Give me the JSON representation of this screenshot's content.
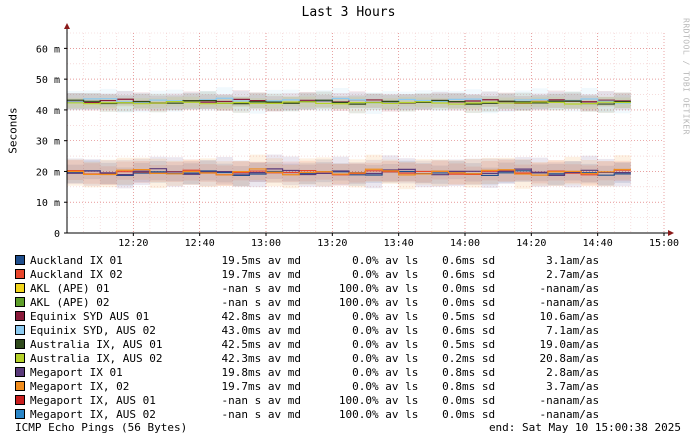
{
  "chart_data": {
    "type": "line",
    "title": "Last 3 Hours",
    "ylabel": "Seconds",
    "ylim": [
      0,
      0.065
    ],
    "xlim": [
      "12:00",
      "15:00"
    ],
    "y_ticks": [
      {
        "value": 0,
        "label": "0"
      },
      {
        "value": 0.01,
        "label": "10 m"
      },
      {
        "value": 0.02,
        "label": "20 m"
      },
      {
        "value": 0.03,
        "label": "30 m"
      },
      {
        "value": 0.04,
        "label": "40 m"
      },
      {
        "value": 0.05,
        "label": "50 m"
      },
      {
        "value": 0.06,
        "label": "60 m"
      }
    ],
    "x_ticks": [
      "12:20",
      "12:40",
      "13:00",
      "13:20",
      "13:40",
      "14:00",
      "14:20",
      "14:40",
      "15:00"
    ],
    "grid": true,
    "series": [
      {
        "name": "Auckland IX 01",
        "color": "#1f4e8c",
        "median": 0.0195,
        "sd": 0.0006
      },
      {
        "name": "Auckland IX 02",
        "color": "#e8462c",
        "median": 0.0197,
        "sd": 0.0006
      },
      {
        "name": "AKL (APE) 01",
        "color": "#f2d51c",
        "median": null,
        "sd": 0
      },
      {
        "name": "AKL (APE) 02",
        "color": "#5e9e2a",
        "median": null,
        "sd": 0
      },
      {
        "name": "Equinix SYD AUS 01",
        "color": "#8a1a3a",
        "median": 0.0428,
        "sd": 0.0005
      },
      {
        "name": "Equinix SYD, AUS 02",
        "color": "#8ccaf0",
        "median": 0.043,
        "sd": 0.0006
      },
      {
        "name": "Australia IX, AUS 01",
        "color": "#2f4a1c",
        "median": 0.0425,
        "sd": 0.0005
      },
      {
        "name": "Australia IX, AUS 02",
        "color": "#b5d12a",
        "median": 0.0423,
        "sd": 0.0002
      },
      {
        "name": "Megaport IX 01",
        "color": "#5a3a7a",
        "median": 0.0198,
        "sd": 0.0008
      },
      {
        "name": "Megaport IX, 02",
        "color": "#f08c1c",
        "median": 0.0197,
        "sd": 0.0008
      },
      {
        "name": "Megaport IX, AUS 01",
        "color": "#c81e1e",
        "median": null,
        "sd": 0
      },
      {
        "name": "Megaport IX, AUS 02",
        "color": "#2a86c8",
        "median": null,
        "sd": 0
      }
    ]
  },
  "legend": [
    {
      "name": "Auckland IX 01",
      "color": "#1f4e8c",
      "avg": "19.5",
      "avg_unit": "ms av md",
      "loss": "0.0",
      "loss_unit": "% av ls",
      "sd": "0.6",
      "sd_unit": "ms sd",
      "amas": "3.1",
      "amas_unit": "am/as"
    },
    {
      "name": "Auckland IX 02",
      "color": "#e8462c",
      "avg": "19.7",
      "avg_unit": "ms av md",
      "loss": "0.0",
      "loss_unit": "% av ls",
      "sd": "0.6",
      "sd_unit": "ms sd",
      "amas": "2.7",
      "amas_unit": "am/as"
    },
    {
      "name": "AKL (APE) 01",
      "color": "#f2d51c",
      "avg": "-nan",
      "avg_unit": " s av md",
      "loss": "100.0",
      "loss_unit": "% av ls",
      "sd": "0.0",
      "sd_unit": "ms sd",
      "amas": "-nan",
      "amas_unit": "am/as"
    },
    {
      "name": "AKL (APE) 02",
      "color": "#5e9e2a",
      "avg": "-nan",
      "avg_unit": " s av md",
      "loss": "100.0",
      "loss_unit": "% av ls",
      "sd": "0.0",
      "sd_unit": "ms sd",
      "amas": "-nan",
      "amas_unit": "am/as"
    },
    {
      "name": "Equinix SYD AUS 01",
      "color": "#8a1a3a",
      "avg": "42.8",
      "avg_unit": "ms av md",
      "loss": "0.0",
      "loss_unit": "% av ls",
      "sd": "0.5",
      "sd_unit": "ms sd",
      "amas": "10.6",
      "amas_unit": "am/as"
    },
    {
      "name": "Equinix SYD, AUS 02",
      "color": "#8ccaf0",
      "avg": "43.0",
      "avg_unit": "ms av md",
      "loss": "0.0",
      "loss_unit": "% av ls",
      "sd": "0.6",
      "sd_unit": "ms sd",
      "amas": "7.1",
      "amas_unit": "am/as"
    },
    {
      "name": "Australia IX, AUS 01",
      "color": "#2f4a1c",
      "avg": "42.5",
      "avg_unit": "ms av md",
      "loss": "0.0",
      "loss_unit": "% av ls",
      "sd": "0.5",
      "sd_unit": "ms sd",
      "amas": "19.0",
      "amas_unit": "am/as"
    },
    {
      "name": "Australia IX, AUS 02",
      "color": "#b5d12a",
      "avg": "42.3",
      "avg_unit": "ms av md",
      "loss": "0.0",
      "loss_unit": "% av ls",
      "sd": "0.2",
      "sd_unit": "ms sd",
      "amas": "20.8",
      "amas_unit": "am/as"
    },
    {
      "name": "Megaport IX 01",
      "color": "#5a3a7a",
      "avg": "19.8",
      "avg_unit": "ms av md",
      "loss": "0.0",
      "loss_unit": "% av ls",
      "sd": "0.8",
      "sd_unit": "ms sd",
      "amas": "2.8",
      "amas_unit": "am/as"
    },
    {
      "name": "Megaport IX, 02",
      "color": "#f08c1c",
      "avg": "19.7",
      "avg_unit": "ms av md",
      "loss": "0.0",
      "loss_unit": "% av ls",
      "sd": "0.8",
      "sd_unit": "ms sd",
      "amas": "3.7",
      "amas_unit": "am/as"
    },
    {
      "name": "Megaport IX, AUS 01",
      "color": "#c81e1e",
      "avg": "-nan",
      "avg_unit": " s av md",
      "loss": "100.0",
      "loss_unit": "% av ls",
      "sd": "0.0",
      "sd_unit": "ms sd",
      "amas": "-nan",
      "amas_unit": "am/as"
    },
    {
      "name": "Megaport IX, AUS 02",
      "color": "#2a86c8",
      "avg": "-nan",
      "avg_unit": " s av md",
      "loss": "100.0",
      "loss_unit": "% av ls",
      "sd": "0.0",
      "sd_unit": "ms sd",
      "amas": "-nan",
      "amas_unit": "am/as"
    }
  ],
  "footer": {
    "probe": "ICMP Echo Pings (56 Bytes)",
    "end": "end: Sat May 10 15:00:38 2025"
  },
  "watermark": "RRDTOOL / TOBI OETIKER"
}
